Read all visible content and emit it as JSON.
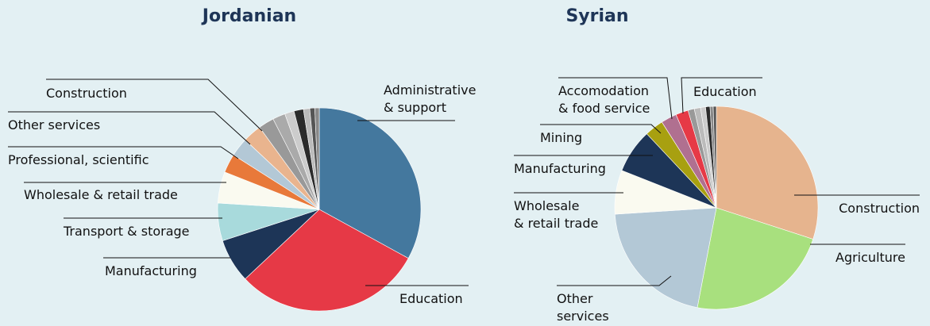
{
  "chart_data": [
    {
      "type": "pie",
      "title": "Jordanian",
      "categories": [
        "Administrative\n& support",
        "Education",
        "Manufacturing",
        "Transport & storage",
        "Wholesale & retail trade",
        "Professional, scientific",
        "Other services",
        "Construction",
        null,
        null,
        null,
        null,
        null,
        null,
        null
      ],
      "values": [
        33,
        30,
        7,
        6,
        5,
        3,
        3,
        3,
        2.5,
        2,
        1.5,
        1.5,
        1,
        0.8,
        0.7
      ],
      "colors": [
        "#44789e",
        "#e63946",
        "#1d3557",
        "#a8dadc",
        "#fafaf0",
        "#e8793a",
        "#b3c8d6",
        "#e9b48e",
        "#999999",
        "#aaaaaa",
        "#cccccc",
        "#2b2b2b",
        "#bbbbbb",
        "#555555",
        "#888888"
      ]
    },
    {
      "type": "pie",
      "title": "Syrian",
      "categories": [
        "Construction",
        "Agriculture",
        "Other\nservices",
        "Wholesale\n& retail trade",
        "Manufacturing",
        "Mining",
        "Accomodation\n& food service",
        "Education",
        null,
        null,
        null,
        null,
        null,
        null
      ],
      "values": [
        30,
        23,
        21,
        7,
        7,
        3,
        2.5,
        2,
        1,
        1,
        0.8,
        0.7,
        0.5,
        0.5
      ],
      "colors": [
        "#e6b48e",
        "#a8e07e",
        "#b3c8d6",
        "#fafaf0",
        "#1d3557",
        "#a8a010",
        "#b07090",
        "#e63946",
        "#999999",
        "#bbbbbb",
        "#cccccc",
        "#2b2b2b",
        "#888888",
        "#555555"
      ]
    }
  ]
}
